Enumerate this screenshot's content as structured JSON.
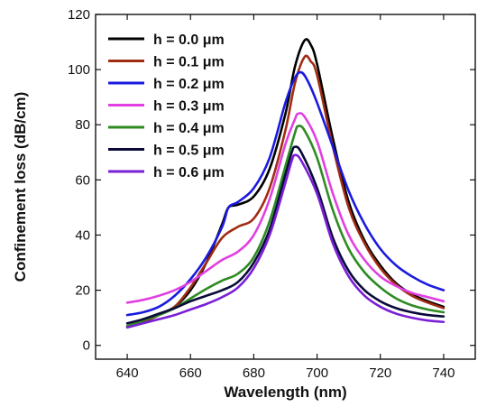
{
  "chart_data": {
    "type": "line",
    "title": "",
    "xlabel": "Wavelength (nm)",
    "ylabel": "Confinement loss (dB/cm)",
    "xlim": [
      630,
      750
    ],
    "ylim": [
      -5,
      120
    ],
    "xticks": [
      640,
      660,
      680,
      700,
      720,
      740
    ],
    "yticks": [
      0,
      20,
      40,
      60,
      80,
      100,
      120
    ],
    "grid": false,
    "legend_position": "top-left",
    "series": [
      {
        "name": "h = 0.0 μm",
        "color": "#000000",
        "points": [
          [
            640,
            7
          ],
          [
            645,
            8.5
          ],
          [
            650,
            11
          ],
          [
            655,
            14
          ],
          [
            660,
            20
          ],
          [
            665,
            30
          ],
          [
            670,
            44
          ],
          [
            672,
            50
          ],
          [
            675,
            51
          ],
          [
            680,
            54
          ],
          [
            685,
            64
          ],
          [
            690,
            84
          ],
          [
            693,
            101
          ],
          [
            696,
            110.5
          ],
          [
            698,
            109
          ],
          [
            700,
            102
          ],
          [
            705,
            75
          ],
          [
            710,
            52
          ],
          [
            715,
            38
          ],
          [
            720,
            29
          ],
          [
            725,
            22.5
          ],
          [
            730,
            18.5
          ],
          [
            735,
            16
          ],
          [
            740,
            14
          ]
        ]
      },
      {
        "name": "h = 0.1 μm",
        "color": "#a02c14",
        "points": [
          [
            640,
            7
          ],
          [
            645,
            8.5
          ],
          [
            650,
            11
          ],
          [
            655,
            14
          ],
          [
            660,
            21
          ],
          [
            665,
            30
          ],
          [
            670,
            39
          ],
          [
            675,
            43
          ],
          [
            680,
            46
          ],
          [
            685,
            57
          ],
          [
            690,
            78
          ],
          [
            693,
            95
          ],
          [
            696,
            104.5
          ],
          [
            698,
            103
          ],
          [
            700,
            98
          ],
          [
            705,
            72
          ],
          [
            710,
            50
          ],
          [
            715,
            37
          ],
          [
            720,
            28
          ],
          [
            725,
            22
          ],
          [
            730,
            18
          ],
          [
            735,
            15.5
          ],
          [
            740,
            13.5
          ]
        ]
      },
      {
        "name": "h = 0.2 μm",
        "color": "#1a1ae0",
        "points": [
          [
            640,
            11
          ],
          [
            645,
            12
          ],
          [
            650,
            14
          ],
          [
            655,
            18
          ],
          [
            660,
            24
          ],
          [
            665,
            32
          ],
          [
            670,
            43
          ],
          [
            672,
            50
          ],
          [
            675,
            52
          ],
          [
            680,
            57
          ],
          [
            685,
            68
          ],
          [
            690,
            88
          ],
          [
            693,
            97
          ],
          [
            695,
            99
          ],
          [
            697,
            96
          ],
          [
            700,
            88
          ],
          [
            705,
            72
          ],
          [
            710,
            56
          ],
          [
            715,
            44
          ],
          [
            720,
            35
          ],
          [
            725,
            29
          ],
          [
            730,
            25
          ],
          [
            735,
            22
          ],
          [
            740,
            20
          ]
        ]
      },
      {
        "name": "h = 0.3 μm",
        "color": "#e040e0",
        "points": [
          [
            640,
            15.5
          ],
          [
            645,
            16.5
          ],
          [
            650,
            18
          ],
          [
            655,
            20
          ],
          [
            660,
            23
          ],
          [
            665,
            27
          ],
          [
            670,
            31
          ],
          [
            675,
            34
          ],
          [
            680,
            40
          ],
          [
            685,
            53
          ],
          [
            690,
            73
          ],
          [
            693,
            82
          ],
          [
            694,
            84
          ],
          [
            696,
            83
          ],
          [
            700,
            74
          ],
          [
            705,
            55
          ],
          [
            710,
            40
          ],
          [
            715,
            31
          ],
          [
            720,
            25
          ],
          [
            725,
            21.5
          ],
          [
            730,
            19
          ],
          [
            735,
            17.5
          ],
          [
            740,
            16
          ]
        ]
      },
      {
        "name": "h = 0.4 μm",
        "color": "#2e8b22",
        "points": [
          [
            640,
            7
          ],
          [
            645,
            9
          ],
          [
            650,
            11
          ],
          [
            655,
            13.5
          ],
          [
            660,
            17
          ],
          [
            665,
            20.5
          ],
          [
            670,
            23.5
          ],
          [
            675,
            26
          ],
          [
            680,
            32
          ],
          [
            685,
            45
          ],
          [
            690,
            65
          ],
          [
            693,
            77
          ],
          [
            694,
            79.5
          ],
          [
            696,
            78
          ],
          [
            700,
            68
          ],
          [
            705,
            49
          ],
          [
            710,
            35
          ],
          [
            715,
            26.5
          ],
          [
            720,
            21
          ],
          [
            725,
            17
          ],
          [
            730,
            14.5
          ],
          [
            735,
            13
          ],
          [
            740,
            12
          ]
        ]
      },
      {
        "name": "h = 0.5 μm",
        "color": "#0a0a3a",
        "points": [
          [
            640,
            8
          ],
          [
            645,
            9.5
          ],
          [
            650,
            11.5
          ],
          [
            655,
            13.5
          ],
          [
            660,
            16
          ],
          [
            665,
            18
          ],
          [
            670,
            20
          ],
          [
            675,
            23
          ],
          [
            680,
            30
          ],
          [
            685,
            42
          ],
          [
            690,
            62
          ],
          [
            692,
            70
          ],
          [
            693,
            72
          ],
          [
            695,
            70
          ],
          [
            700,
            57
          ],
          [
            705,
            39
          ],
          [
            710,
            27
          ],
          [
            715,
            20
          ],
          [
            720,
            16
          ],
          [
            725,
            13.5
          ],
          [
            730,
            12
          ],
          [
            735,
            11
          ],
          [
            740,
            10.5
          ]
        ]
      },
      {
        "name": "h = 0.6 μm",
        "color": "#7a1fd6",
        "points": [
          [
            640,
            6.5
          ],
          [
            645,
            8
          ],
          [
            650,
            9.5
          ],
          [
            655,
            11
          ],
          [
            660,
            13
          ],
          [
            665,
            15
          ],
          [
            670,
            17.5
          ],
          [
            675,
            21
          ],
          [
            680,
            28
          ],
          [
            685,
            40
          ],
          [
            690,
            59
          ],
          [
            692,
            67
          ],
          [
            693,
            69
          ],
          [
            695,
            67
          ],
          [
            700,
            55
          ],
          [
            705,
            37
          ],
          [
            710,
            25
          ],
          [
            715,
            18
          ],
          [
            720,
            14
          ],
          [
            725,
            11.5
          ],
          [
            730,
            10
          ],
          [
            735,
            9
          ],
          [
            740,
            8.5
          ]
        ]
      }
    ]
  }
}
